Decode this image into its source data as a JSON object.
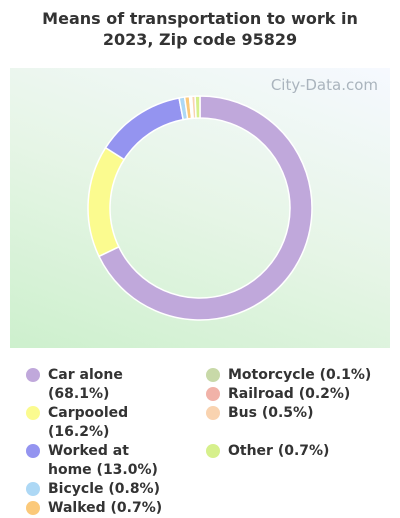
{
  "title": "Means of transportation to work in 2023, Zip code 95829",
  "watermark": "City-Data.com",
  "chart_data": {
    "type": "donut",
    "categories": [
      "Car alone (68.1%)",
      "Carpooled (16.2%)",
      "Worked at home (13.0%)",
      "Bicycle (0.8%)",
      "Walked (0.7%)",
      "Motorcycle (0.1%)",
      "Railroad (0.2%)",
      "Bus (0.5%)",
      "Other (0.7%)"
    ],
    "values": [
      68.1,
      16.2,
      13.0,
      0.8,
      0.7,
      0.1,
      0.2,
      0.5,
      0.7
    ],
    "colors": [
      "#c0a8db",
      "#fbfb8f",
      "#9494f0",
      "#add8f5",
      "#fbc97a",
      "#c8d9a8",
      "#f1b2a8",
      "#f9d3b0",
      "#d6f08c"
    ]
  }
}
